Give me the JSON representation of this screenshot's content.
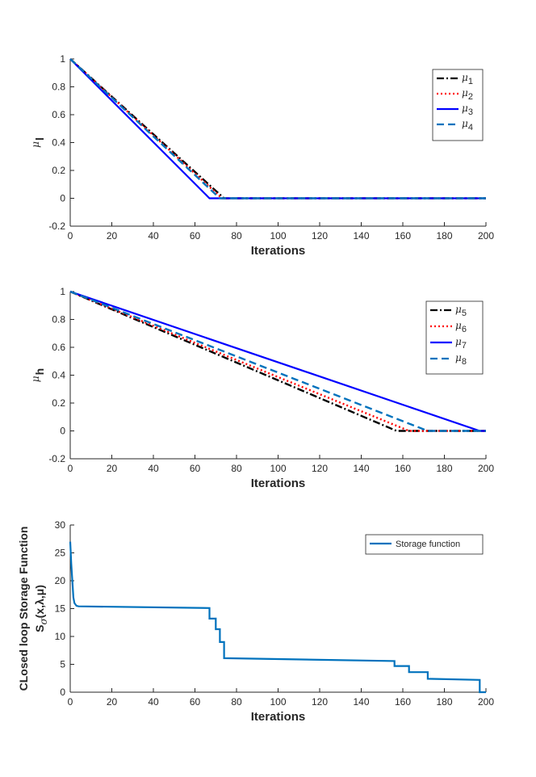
{
  "chart_data": [
    {
      "type": "line",
      "xlabel": "Iterations",
      "ylabel": "μl",
      "ylabel_main": "μ",
      "ylabel_sub": "l",
      "xlim": [
        0,
        200
      ],
      "ylim": [
        -0.2,
        1
      ],
      "xticks": [
        "0",
        "20",
        "40",
        "60",
        "80",
        "100",
        "120",
        "140",
        "160",
        "180",
        "200"
      ],
      "yticks": [
        "-0.2",
        "0",
        "0.2",
        "0.4",
        "0.6",
        "0.8",
        "1"
      ],
      "legend_position": "top-right",
      "series": [
        {
          "name": "μ1",
          "base": "μ",
          "sub": "1",
          "color": "#000000",
          "dash": "dashdot",
          "x": [
            0,
            74,
            200
          ],
          "y": [
            1,
            0,
            0
          ]
        },
        {
          "name": "μ2",
          "base": "μ",
          "sub": "2",
          "color": "#ff0000",
          "dash": "dotted",
          "x": [
            0,
            73,
            200
          ],
          "y": [
            1,
            0,
            0
          ]
        },
        {
          "name": "μ3",
          "base": "μ",
          "sub": "3",
          "color": "#0000ff",
          "dash": "solid",
          "x": [
            0,
            67,
            200
          ],
          "y": [
            1,
            0,
            0
          ]
        },
        {
          "name": "μ4",
          "base": "μ",
          "sub": "4",
          "color": "#0072bd",
          "dash": "dashed",
          "x": [
            0,
            72,
            200
          ],
          "y": [
            1,
            0,
            0
          ]
        }
      ]
    },
    {
      "type": "line",
      "xlabel": "Iterations",
      "ylabel": "μh",
      "ylabel_main": "μ",
      "ylabel_sub": "h",
      "xlim": [
        0,
        200
      ],
      "ylim": [
        -0.2,
        1
      ],
      "xticks": [
        "0",
        "20",
        "40",
        "60",
        "80",
        "100",
        "120",
        "140",
        "160",
        "180",
        "200"
      ],
      "yticks": [
        "-0.2",
        "0",
        "0.2",
        "0.4",
        "0.6",
        "0.8",
        "1"
      ],
      "legend_position": "top-right",
      "series": [
        {
          "name": "μ5",
          "base": "μ",
          "sub": "5",
          "color": "#000000",
          "dash": "dashdot",
          "x": [
            0,
            157,
            200
          ],
          "y": [
            1,
            0,
            0
          ]
        },
        {
          "name": "μ6",
          "base": "μ",
          "sub": "6",
          "color": "#ff0000",
          "dash": "dotted",
          "x": [
            0,
            163,
            200
          ],
          "y": [
            1,
            0,
            0
          ]
        },
        {
          "name": "μ7",
          "base": "μ",
          "sub": "7",
          "color": "#0000ff",
          "dash": "solid",
          "x": [
            0,
            197,
            200
          ],
          "y": [
            1,
            0,
            0
          ]
        },
        {
          "name": "μ8",
          "base": "μ",
          "sub": "8",
          "color": "#0072bd",
          "dash": "dashed",
          "x": [
            0,
            172,
            200
          ],
          "y": [
            1,
            0,
            0
          ]
        }
      ]
    },
    {
      "type": "line",
      "xlabel": "Iterations",
      "ylabel_line1": "CLosed loop Storage Function",
      "ylabel_line2": "S (x,λ,μ)",
      "ylabel_line2_main": "S",
      "ylabel_line2_sub": "σ",
      "ylabel_line2_rest": "(x,λ,μ)",
      "xlim": [
        0,
        200
      ],
      "ylim": [
        0,
        30
      ],
      "xticks": [
        "0",
        "20",
        "40",
        "60",
        "80",
        "100",
        "120",
        "140",
        "160",
        "180",
        "200"
      ],
      "yticks": [
        "0",
        "5",
        "10",
        "15",
        "20",
        "25",
        "30"
      ],
      "legend_position": "top-right",
      "series": [
        {
          "name": "Storage function",
          "color": "#0072bd",
          "dash": "solid",
          "x": [
            0,
            0.5,
            1,
            1.5,
            2,
            3,
            4,
            67,
            67,
            70,
            70,
            72,
            72,
            74,
            74,
            156,
            156,
            163,
            163,
            172,
            172,
            197,
            197,
            200
          ],
          "y": [
            27,
            23,
            20,
            17,
            16,
            15.5,
            15.4,
            15.1,
            13.2,
            13.2,
            11.3,
            11.3,
            9.0,
            9.0,
            6.1,
            5.6,
            4.7,
            4.7,
            3.6,
            3.6,
            2.4,
            2.2,
            0,
            0
          ]
        }
      ]
    }
  ]
}
